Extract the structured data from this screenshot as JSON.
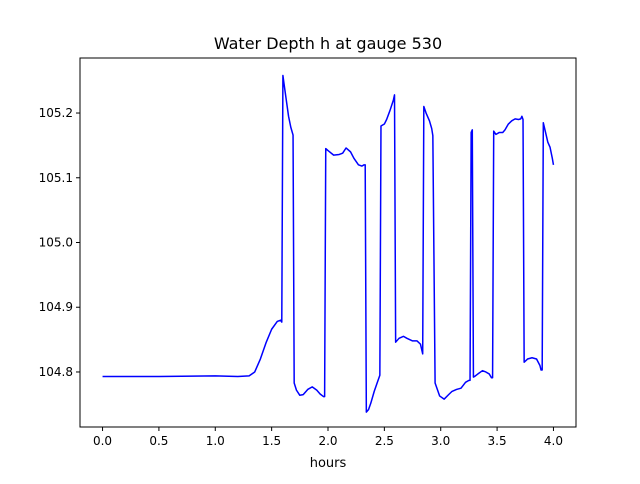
{
  "chart_data": {
    "type": "line",
    "title": "Water Depth h at gauge 530",
    "xlabel": "hours",
    "ylabel": "",
    "xlim": [
      -0.2,
      4.2
    ],
    "ylim": [
      104.715,
      105.285
    ],
    "x_ticks": [
      0.0,
      0.5,
      1.0,
      1.5,
      2.0,
      2.5,
      3.0,
      3.5,
      4.0
    ],
    "x_tick_labels": [
      "0.0",
      "0.5",
      "1.0",
      "1.5",
      "2.0",
      "2.5",
      "3.0",
      "3.5",
      "4.0"
    ],
    "y_ticks": [
      104.8,
      104.9,
      105.0,
      105.1,
      105.2
    ],
    "y_tick_labels": [
      "104.8",
      "104.9",
      "105.0",
      "105.1",
      "105.2"
    ],
    "grid": false,
    "legend": "none",
    "series_color": "#0000ff",
    "series": [
      {
        "x": [
          0.0,
          0.5,
          1.0,
          1.2,
          1.3,
          1.35,
          1.4,
          1.45,
          1.5,
          1.55,
          1.58,
          1.59,
          1.6,
          1.61,
          1.63,
          1.65,
          1.67,
          1.69,
          1.7,
          1.72,
          1.75,
          1.78,
          1.82,
          1.86,
          1.9,
          1.93,
          1.96,
          1.97,
          1.98,
          2.0,
          2.05,
          2.1,
          2.13,
          2.16,
          2.2,
          2.23,
          2.27,
          2.3,
          2.32,
          2.33,
          2.34,
          2.36,
          2.38,
          2.41,
          2.44,
          2.46,
          2.47,
          2.5,
          2.52,
          2.55,
          2.58,
          2.59,
          2.6,
          2.63,
          2.67,
          2.7,
          2.75,
          2.79,
          2.82,
          2.84,
          2.85,
          2.87,
          2.9,
          2.92,
          2.93,
          2.95,
          2.99,
          3.03,
          3.07,
          3.1,
          3.14,
          3.18,
          3.22,
          3.25,
          3.26,
          3.27,
          3.28,
          3.29,
          3.3,
          3.33,
          3.37,
          3.4,
          3.43,
          3.45,
          3.46,
          3.47,
          3.49,
          3.52,
          3.55,
          3.57,
          3.6,
          3.63,
          3.66,
          3.69,
          3.71,
          3.72,
          3.73,
          3.74,
          3.77,
          3.81,
          3.85,
          3.88,
          3.89,
          3.9,
          3.91,
          3.93,
          3.95,
          3.97,
          3.99,
          4.0
        ],
        "y": [
          104.793,
          104.793,
          104.794,
          104.793,
          104.794,
          104.8,
          104.82,
          104.845,
          104.866,
          104.878,
          104.88,
          104.877,
          105.258,
          105.245,
          105.22,
          105.195,
          105.178,
          105.166,
          104.783,
          104.772,
          104.764,
          104.765,
          104.773,
          104.777,
          104.772,
          104.766,
          104.762,
          104.762,
          105.145,
          105.142,
          105.135,
          105.136,
          105.138,
          105.146,
          105.14,
          105.13,
          105.12,
          105.118,
          105.12,
          105.12,
          104.738,
          104.742,
          104.752,
          104.77,
          104.785,
          104.795,
          105.18,
          105.183,
          105.19,
          105.204,
          105.22,
          105.228,
          104.846,
          104.852,
          104.855,
          104.852,
          104.848,
          104.848,
          104.843,
          104.828,
          105.21,
          105.2,
          105.188,
          105.176,
          105.165,
          104.783,
          104.763,
          104.758,
          104.765,
          104.77,
          104.773,
          104.775,
          104.784,
          104.787,
          104.787,
          105.17,
          105.174,
          104.792,
          104.793,
          104.797,
          104.802,
          104.8,
          104.797,
          104.791,
          104.791,
          105.172,
          105.167,
          105.17,
          105.17,
          105.174,
          105.183,
          105.188,
          105.191,
          105.19,
          105.191,
          105.195,
          105.19,
          104.815,
          104.82,
          104.822,
          104.82,
          104.81,
          104.803,
          104.803,
          105.185,
          105.17,
          105.155,
          105.147,
          105.13,
          105.12
        ]
      }
    ]
  }
}
